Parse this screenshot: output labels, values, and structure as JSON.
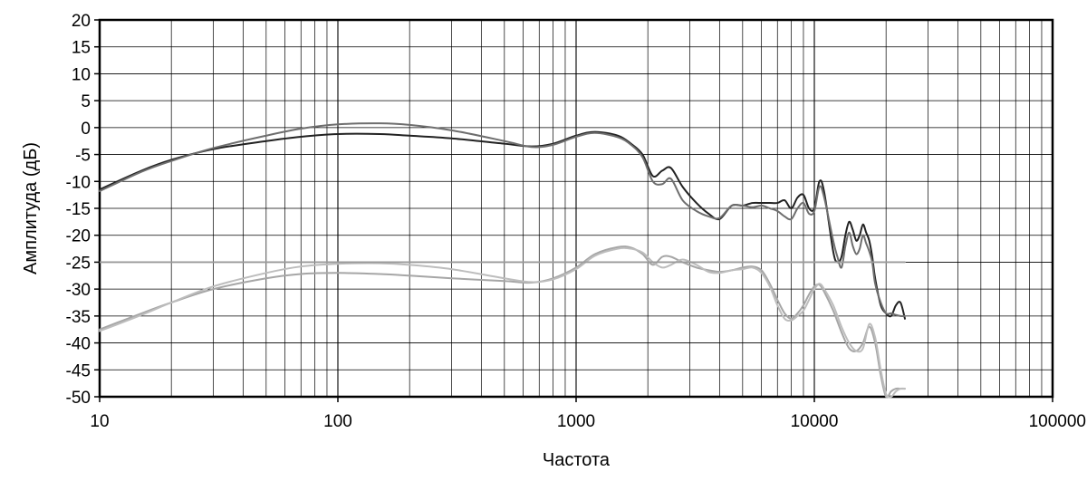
{
  "chart_data": {
    "type": "line",
    "title": "",
    "xlabel": "Частота",
    "ylabel": "Амплитуда (дБ)",
    "x_scale": "log",
    "xlim": [
      10,
      100000
    ],
    "ylim": [
      -50,
      20
    ],
    "grid": true,
    "legend": "none",
    "x_ticks": [
      10,
      100,
      1000,
      10000,
      100000
    ],
    "x_tick_labels": [
      "10",
      "100",
      "1000",
      "10000",
      "100000"
    ],
    "y_ticks": [
      20,
      15,
      10,
      5,
      0,
      -5,
      -10,
      -15,
      -20,
      -25,
      -30,
      -35,
      -40,
      -45,
      -50
    ],
    "y_tick_labels": [
      "20",
      "15",
      "10",
      "5",
      "0",
      "-5",
      "-10",
      "-15",
      "-20",
      "-25",
      "-30",
      "-35",
      "-40",
      "-45",
      "-50"
    ],
    "series": [
      {
        "color": "#222222",
        "x": [
          10,
          15,
          20,
          30,
          50,
          70,
          100,
          150,
          200,
          300,
          500,
          650,
          800,
          1000,
          1200,
          1500,
          1700,
          1900,
          2100,
          2300,
          2500,
          2800,
          3200,
          3600,
          4000,
          4500,
          5000,
          5500,
          6000,
          6500,
          7000,
          7500,
          8000,
          8500,
          9000,
          9500,
          10000,
          10500,
          11000,
          12000,
          12500,
          13000,
          13500,
          14000,
          14500,
          15000,
          15500,
          16000,
          16500,
          17000,
          17500,
          18000,
          19000,
          20000,
          21000,
          22000,
          23000,
          24000
        ],
        "y": [
          -11.5,
          -8,
          -6,
          -4,
          -2.5,
          -1.7,
          -1.2,
          -1.2,
          -1.5,
          -2,
          -3,
          -3.5,
          -3,
          -1.5,
          -0.8,
          -1.5,
          -3,
          -5,
          -9,
          -8,
          -7.5,
          -11,
          -14,
          -16,
          -17,
          -14.5,
          -14.5,
          -14,
          -14,
          -14,
          -14,
          -13.5,
          -15,
          -13,
          -12.5,
          -15,
          -15,
          -10,
          -12,
          -23,
          -25,
          -24,
          -20,
          -17.5,
          -19,
          -21,
          -20,
          -18,
          -19.5,
          -21,
          -24,
          -28,
          -33,
          -34.5,
          -35,
          -33,
          -32.5,
          -35.5
        ]
      },
      {
        "color": "#6e6e6e",
        "x": [
          10,
          15,
          20,
          30,
          50,
          70,
          100,
          150,
          200,
          300,
          500,
          650,
          800,
          1000,
          1200,
          1500,
          1700,
          1900,
          2100,
          2300,
          2500,
          2800,
          3200,
          3600,
          4000,
          4500,
          5000,
          5500,
          6000,
          6500,
          7000,
          7500,
          8000,
          8500,
          9000,
          9500,
          10000,
          10500,
          11000,
          12000,
          12500,
          13000,
          13500,
          14000,
          14500,
          15000,
          15500,
          16000,
          16500,
          17000,
          17500,
          18000,
          19000,
          20000,
          21000,
          22000,
          23000,
          24000
        ],
        "y": [
          -11.8,
          -8.2,
          -6.2,
          -3.8,
          -1.5,
          -0.2,
          0.6,
          0.8,
          0.5,
          -0.5,
          -2.5,
          -3.6,
          -3.2,
          -1.7,
          -1,
          -1.8,
          -3.2,
          -5.5,
          -10,
          -10.5,
          -9.5,
          -13.5,
          -15.5,
          -16.5,
          -16.8,
          -14.5,
          -14.5,
          -14.8,
          -14.5,
          -15,
          -15.5,
          -16.5,
          -17,
          -15,
          -14,
          -16,
          -15.5,
          -11,
          -13,
          -21,
          -24,
          -26,
          -22,
          -19.5,
          -22,
          -23.5,
          -22.5,
          -20,
          -21.5,
          -23,
          -25,
          -29,
          -32.5,
          -34.5,
          -34.5,
          -34.8,
          -35,
          -35
        ]
      },
      {
        "color": "#a6a6a6",
        "x": [
          10,
          15,
          20,
          30,
          50,
          70,
          100,
          150,
          200,
          300,
          500,
          650,
          800,
          1000,
          1200,
          1500,
          1700,
          1900,
          2100,
          2300,
          2500,
          2800,
          3200,
          3600,
          4000,
          4500,
          5000,
          5500,
          6000,
          6500,
          7000,
          7500,
          8000,
          8500,
          9000,
          9500,
          10000,
          10500,
          11000,
          12000,
          13000,
          14000,
          15000,
          16000,
          17000,
          18000,
          19000,
          20000,
          21000,
          22000,
          23000,
          24000
        ],
        "y": [
          -37.5,
          -34.5,
          -32.5,
          -30,
          -28,
          -27.2,
          -27,
          -27.2,
          -27.5,
          -28,
          -28.5,
          -28.8,
          -28,
          -26,
          -23.5,
          -22.2,
          -22.3,
          -23.5,
          -25.5,
          -24,
          -24,
          -25,
          -26,
          -26.5,
          -26.8,
          -26.5,
          -26,
          -25.8,
          -26.5,
          -29,
          -32,
          -34.5,
          -35.5,
          -34.5,
          -33,
          -31,
          -29.5,
          -29.2,
          -30.5,
          -34,
          -38,
          -41,
          -41.5,
          -40,
          -37,
          -40,
          -46,
          -50,
          -49,
          -48.5,
          -48.5,
          -48.5
        ]
      },
      {
        "color": "#bdbdbd",
        "x": [
          10,
          15,
          20,
          30,
          50,
          70,
          100,
          150,
          200,
          300,
          500,
          650,
          800,
          1000,
          1200,
          1500,
          1700,
          1900,
          2100,
          2300,
          2500,
          2800,
          3200,
          3600,
          4000,
          4500,
          5000,
          5500,
          6000,
          6500,
          7000,
          7500,
          8000,
          8500,
          9000,
          9500,
          10000,
          10500,
          11000,
          12000,
          13000,
          14000,
          15000,
          16000,
          17000,
          18000,
          19000,
          20000,
          21000,
          22000,
          23000,
          24000
        ],
        "y": [
          -37.8,
          -34.8,
          -32.5,
          -29.5,
          -27,
          -25.8,
          -25.3,
          -25.2,
          -25.5,
          -26.3,
          -28,
          -28.7,
          -28.2,
          -26.3,
          -23.8,
          -22.5,
          -22.5,
          -23.2,
          -25,
          -26,
          -25.5,
          -24.5,
          -25.5,
          -26.8,
          -27,
          -26.5,
          -26.3,
          -26,
          -27,
          -29.5,
          -33,
          -35.5,
          -35.8,
          -35,
          -34,
          -32,
          -30,
          -29,
          -30,
          -33,
          -37,
          -40,
          -41.5,
          -41,
          -36.5,
          -39,
          -45,
          -49.5,
          -50,
          -49,
          -48.5,
          -48.5
        ]
      },
      {
        "color": "#9a9a9a",
        "x": [
          10,
          24000
        ],
        "y": [
          -25,
          -25
        ]
      }
    ]
  }
}
